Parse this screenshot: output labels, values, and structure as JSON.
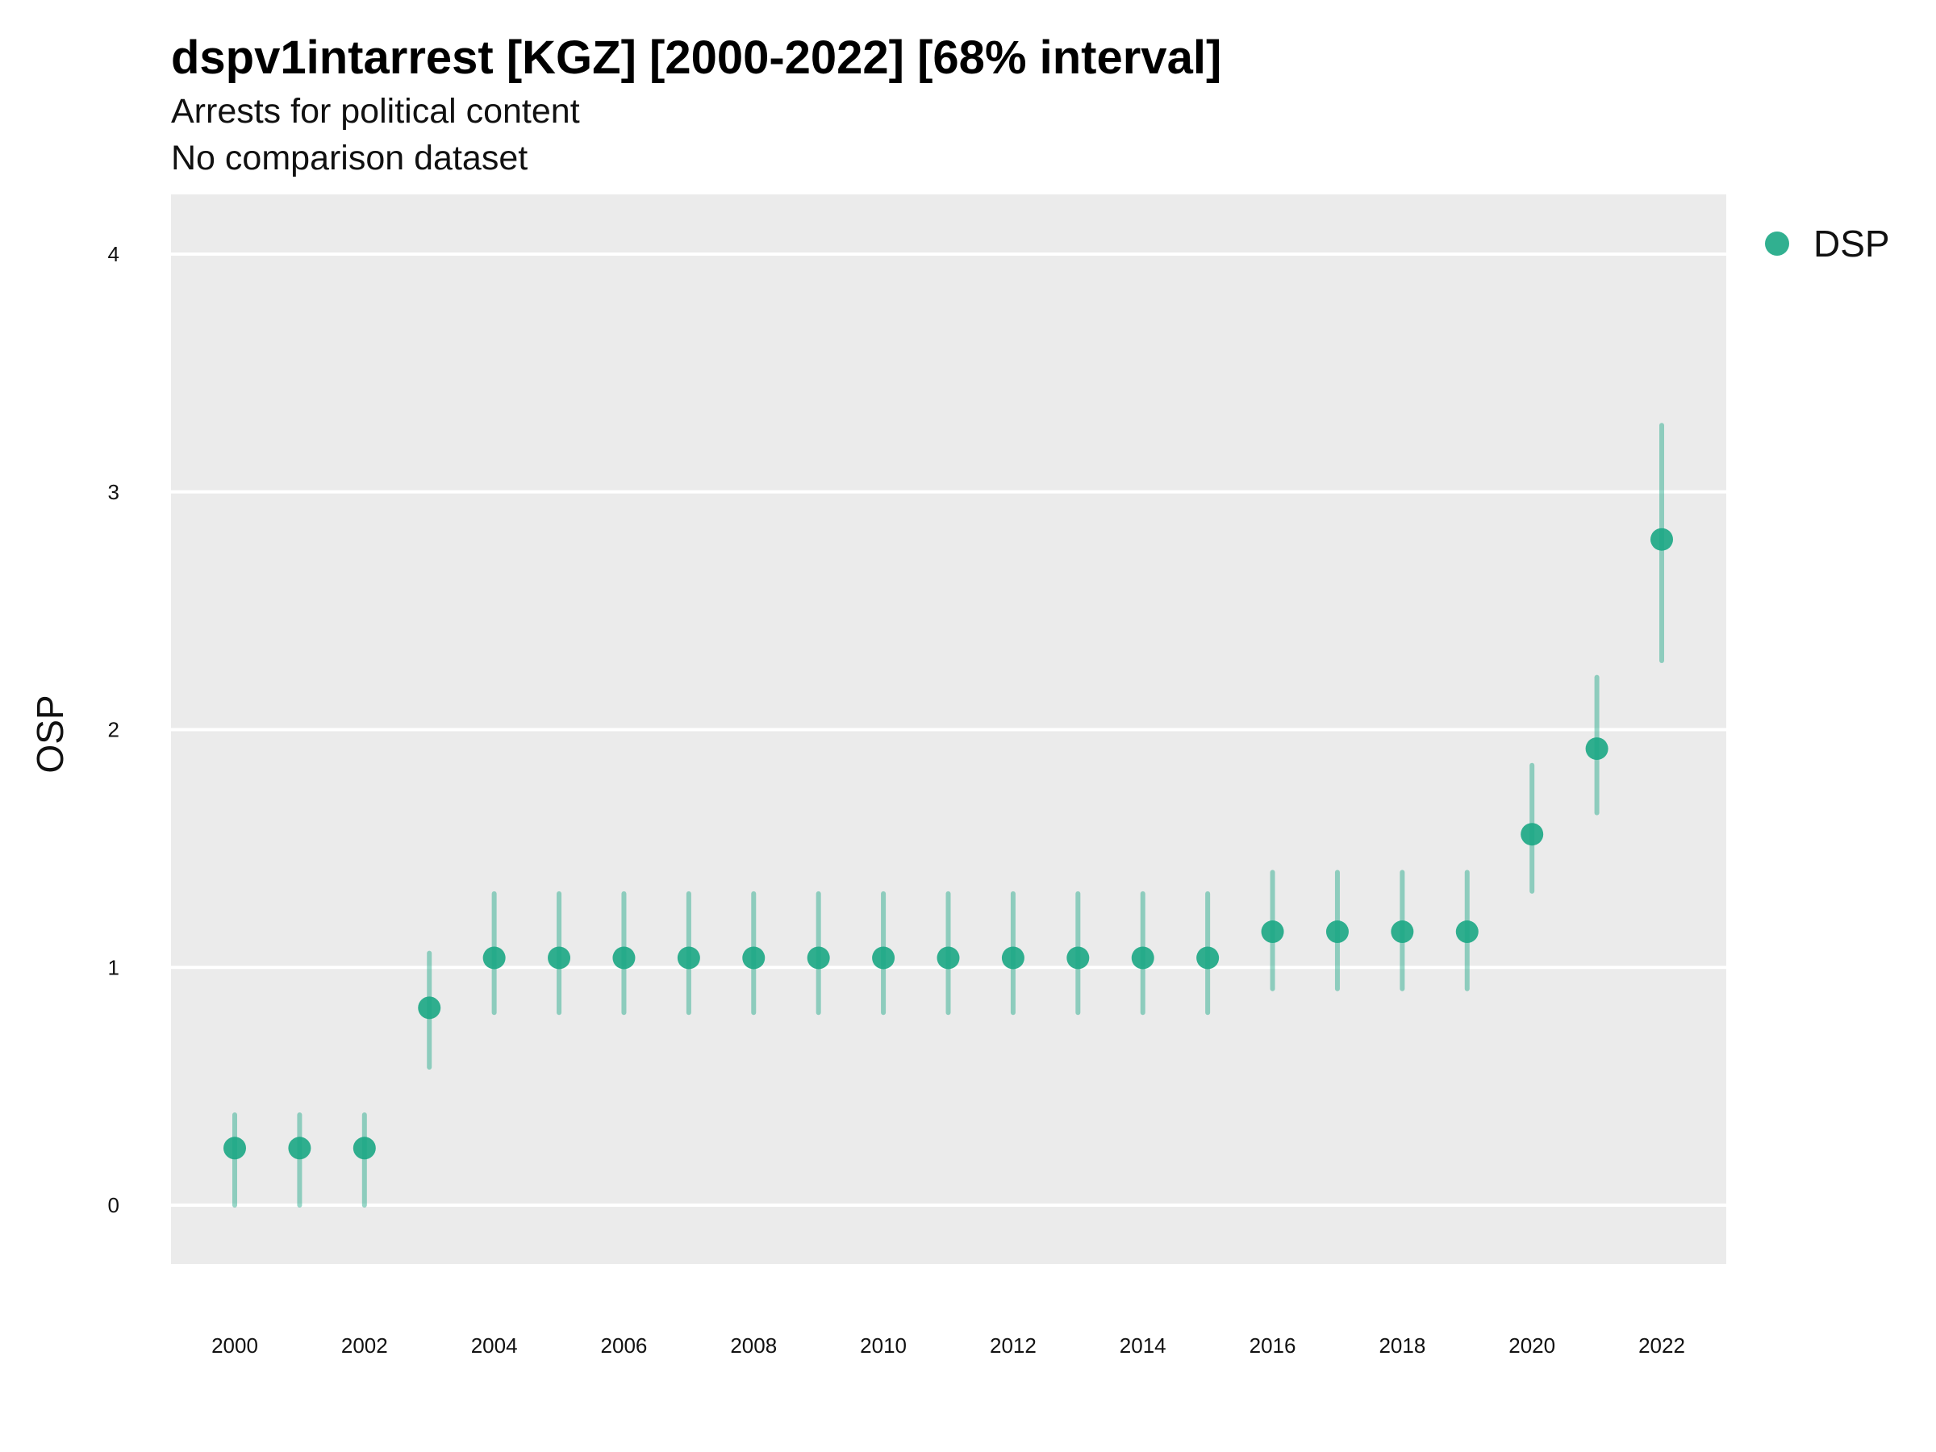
{
  "chart_data": {
    "type": "scatter",
    "title": "dspv1intarrest [KGZ] [2000-2022] [68% interval]",
    "subtitle": "Arrests for political content",
    "subtitle2": "No comparison dataset",
    "xlabel": "",
    "ylabel": "OSP",
    "xlim": [
      1999,
      2023
    ],
    "ylim": [
      -0.25,
      4.25
    ],
    "x_ticks": [
      2000,
      2002,
      2004,
      2006,
      2008,
      2010,
      2012,
      2014,
      2016,
      2018,
      2020,
      2022
    ],
    "y_ticks": [
      0,
      1,
      2,
      3,
      4
    ],
    "grid": true,
    "legend_position": "right",
    "color": "#1ba784",
    "series": [
      {
        "name": "DSP",
        "x": [
          2000,
          2001,
          2002,
          2003,
          2004,
          2005,
          2006,
          2007,
          2008,
          2009,
          2010,
          2011,
          2012,
          2013,
          2014,
          2015,
          2016,
          2017,
          2018,
          2019,
          2020,
          2021,
          2022
        ],
        "y": [
          0.24,
          0.24,
          0.24,
          0.83,
          1.04,
          1.04,
          1.04,
          1.04,
          1.04,
          1.04,
          1.04,
          1.04,
          1.04,
          1.04,
          1.04,
          1.04,
          1.15,
          1.15,
          1.15,
          1.15,
          1.56,
          1.92,
          2.8
        ],
        "lower": [
          0.0,
          0.0,
          0.0,
          0.58,
          0.81,
          0.81,
          0.81,
          0.81,
          0.81,
          0.81,
          0.81,
          0.81,
          0.81,
          0.81,
          0.81,
          0.81,
          0.91,
          0.91,
          0.91,
          0.91,
          1.32,
          1.65,
          2.29
        ],
        "upper": [
          0.38,
          0.38,
          0.38,
          1.06,
          1.31,
          1.31,
          1.31,
          1.31,
          1.31,
          1.31,
          1.31,
          1.31,
          1.31,
          1.31,
          1.31,
          1.31,
          1.4,
          1.4,
          1.4,
          1.4,
          1.85,
          2.22,
          3.28
        ]
      }
    ]
  }
}
